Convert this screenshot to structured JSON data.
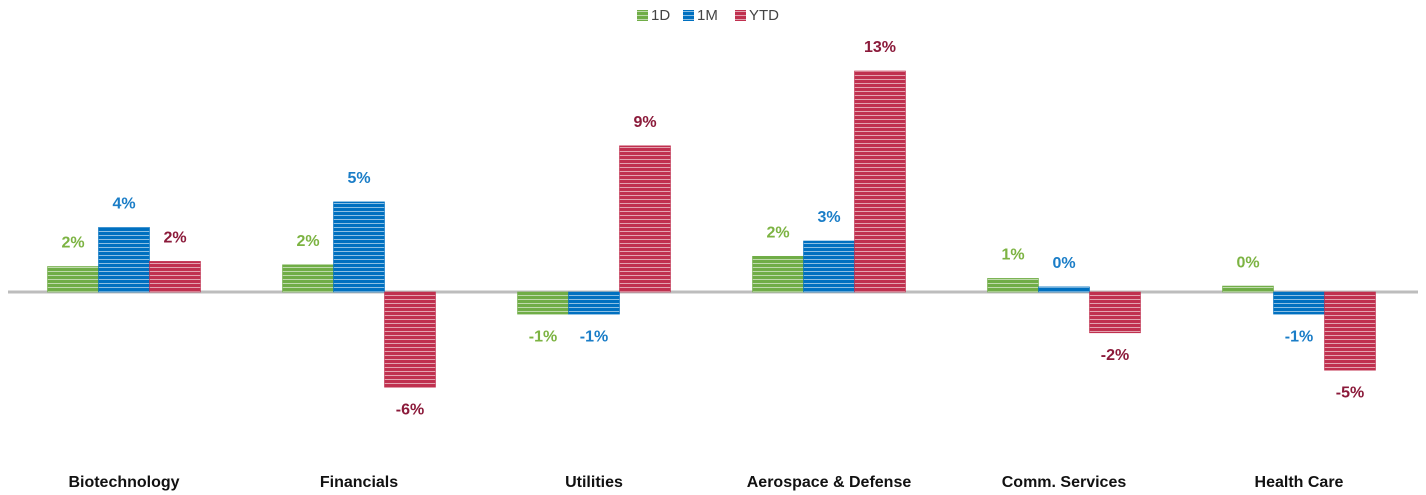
{
  "chart_data": {
    "type": "bar",
    "categories": [
      "Biotechnology",
      "Financials",
      "Utilities",
      "Aerospace & Defense",
      "Comm. Services",
      "Health Care"
    ],
    "series": [
      {
        "name": "1D",
        "color": "#70ad47",
        "label_color": "#7cb342",
        "values": [
          1.5,
          1.6,
          -1.3,
          2.1,
          0.8,
          0.35
        ],
        "value_labels": [
          "2%",
          "2%",
          "-1%",
          "2%",
          "1%",
          "0%"
        ]
      },
      {
        "name": "1M",
        "color": "#0070c0",
        "label_color": "#1a7dc7",
        "values": [
          3.8,
          5.3,
          -1.3,
          3.0,
          0.3,
          -1.3
        ],
        "value_labels": [
          "4%",
          "5%",
          "-1%",
          "3%",
          "0%",
          "-1%"
        ]
      },
      {
        "name": "YTD",
        "color": "#c0304f",
        "label_color": "#8b1a3a",
        "values": [
          1.8,
          -5.6,
          8.6,
          13.0,
          -2.4,
          -4.6
        ],
        "value_labels": [
          "2%",
          "-6%",
          "9%",
          "13%",
          "-2%",
          "-5%"
        ]
      }
    ],
    "ylim": [
      -10,
      14
    ],
    "grid": false,
    "legend": "top"
  }
}
